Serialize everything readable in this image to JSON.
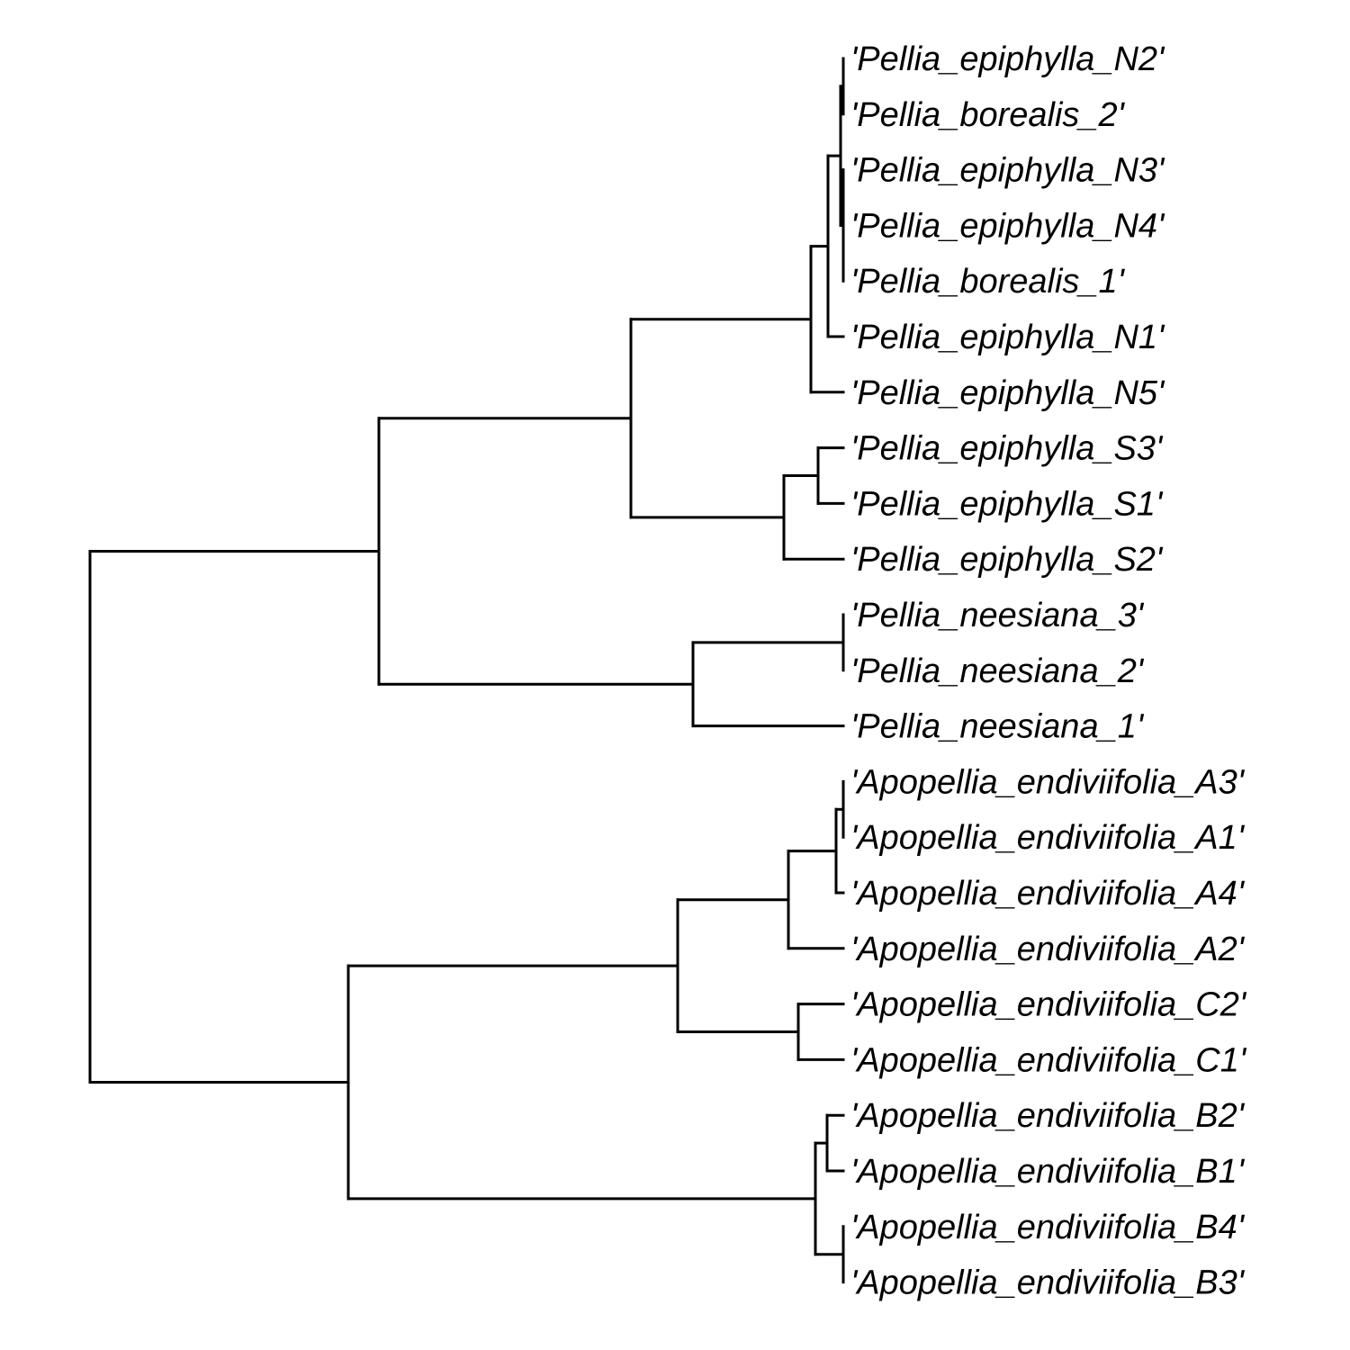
{
  "tree": {
    "type": "phylogram",
    "taxa": [
      "'Pellia_epiphylla_N2'",
      "'Pellia_borealis_2'",
      "'Pellia_epiphylla_N3'",
      "'Pellia_epiphylla_N4'",
      "'Pellia_borealis_1'",
      "'Pellia_epiphylla_N1'",
      "'Pellia_epiphylla_N5'",
      "'Pellia_epiphylla_S3'",
      "'Pellia_epiphylla_S1'",
      "'Pellia_epiphylla_S2'",
      "'Pellia_neesiana_3'",
      "'Pellia_neesiana_2'",
      "'Pellia_neesiana_1'",
      "'Apopellia_endiviifolia_A3'",
      "'Apopellia_endiviifolia_A1'",
      "'Apopellia_endiviifolia_A4'",
      "'Apopellia_endiviifolia_A2'",
      "'Apopellia_endiviifolia_C2'",
      "'Apopellia_endiviifolia_C1'",
      "'Apopellia_endiviifolia_B2'",
      "'Apopellia_endiviifolia_B1'",
      "'Apopellia_endiviifolia_B4'",
      "'Apopellia_endiviifolia_B3'"
    ],
    "branch_color": "#000000"
  }
}
